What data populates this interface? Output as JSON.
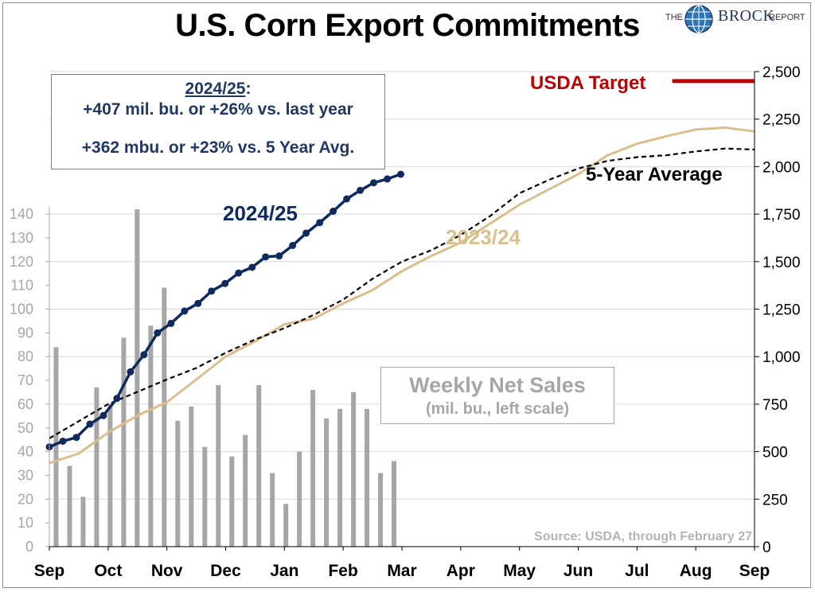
{
  "title": "U.S. Corn Export Commitments",
  "logo": {
    "the": "THE",
    "brock": "BROCK",
    "report": "REPORT"
  },
  "info_box": {
    "heading": "2024/25",
    "heading_suffix": ":",
    "line1": "+407 mil. bu. or +26% vs. last year",
    "line2": "+362 mbu. or +23% vs. 5 Year Avg."
  },
  "weekly_box": {
    "line1": "Weekly Net Sales",
    "line2": "(mil. bu., left scale)"
  },
  "source": "Source: USDA, through February 27",
  "colors": {
    "navy": "#0f2a5f",
    "tan": "#d9bf8c",
    "avg": "#000000",
    "usda": "#c00000",
    "bars": "#a6a6a6",
    "grid": "#d9d9d9"
  },
  "chart_data": {
    "type": "line",
    "x_axis": {
      "labels": [
        "Sep",
        "Oct",
        "Nov",
        "Dec",
        "Jan",
        "Feb",
        "Mar",
        "Apr",
        "May",
        "Jun",
        "Jul",
        "Aug",
        "Sep"
      ],
      "range_months": [
        0,
        12
      ]
    },
    "right_axis": {
      "ticks": [
        "0",
        "250",
        "500",
        "750",
        "1,000",
        "1,250",
        "1,500",
        "1,750",
        "2,000",
        "2,250",
        "2,500"
      ],
      "ylim": [
        0,
        2500
      ]
    },
    "left_axis": {
      "ticks": [
        "0",
        "10",
        "20",
        "30",
        "40",
        "50",
        "60",
        "70",
        "80",
        "90",
        "100",
        "110",
        "120",
        "130",
        "140"
      ],
      "ylim": [
        0,
        200
      ]
    },
    "grid": true,
    "series": [
      {
        "name": "2024/25",
        "axis": "right",
        "style": "solid-markers",
        "x": [
          0,
          0.23,
          0.46,
          0.69,
          0.92,
          1.15,
          1.38,
          1.61,
          1.84,
          2.07,
          2.3,
          2.53,
          2.76,
          2.99,
          3.22,
          3.45,
          3.68,
          3.91,
          4.14,
          4.37,
          4.6,
          4.83,
          5.06,
          5.29,
          5.52,
          5.75,
          5.98
        ],
        "y": [
          525,
          555,
          575,
          645,
          690,
          780,
          920,
          1010,
          1125,
          1175,
          1240,
          1280,
          1345,
          1385,
          1440,
          1470,
          1525,
          1530,
          1585,
          1650,
          1705,
          1765,
          1830,
          1875,
          1915,
          1935,
          1960
        ]
      },
      {
        "name": "2023/24",
        "axis": "right",
        "style": "solid",
        "x": [
          0,
          0.5,
          1,
          1.5,
          2,
          2.5,
          3,
          3.5,
          4,
          4.5,
          5,
          5.5,
          6,
          6.5,
          7,
          7.5,
          8,
          8.5,
          9,
          9.5,
          10,
          10.5,
          11,
          11.5,
          12
        ],
        "y": [
          440,
          490,
          600,
          690,
          760,
          880,
          1000,
          1080,
          1170,
          1200,
          1280,
          1350,
          1450,
          1530,
          1600,
          1700,
          1800,
          1880,
          1960,
          2060,
          2120,
          2160,
          2195,
          2205,
          2185
        ]
      },
      {
        "name": "5-Year Average",
        "axis": "right",
        "style": "dashed",
        "x": [
          0,
          0.5,
          1,
          1.5,
          2,
          2.5,
          3,
          3.5,
          4,
          4.5,
          5,
          5.5,
          6,
          6.5,
          7,
          7.5,
          8,
          8.5,
          9,
          9.5,
          10,
          10.5,
          11,
          11.5,
          12
        ],
        "y": [
          570,
          660,
          750,
          815,
          880,
          940,
          1020,
          1090,
          1150,
          1220,
          1300,
          1410,
          1500,
          1560,
          1640,
          1740,
          1860,
          1930,
          1990,
          2030,
          2050,
          2060,
          2080,
          2095,
          2090
        ]
      },
      {
        "name": "USDA Target",
        "axis": "right",
        "style": "solid-thick",
        "x": [
          10.6,
          12
        ],
        "y": [
          2450,
          2450
        ]
      }
    ],
    "bars": {
      "name": "Weekly Net Sales",
      "axis": "left",
      "x": [
        0.115,
        0.345,
        0.575,
        0.805,
        1.035,
        1.265,
        1.495,
        1.725,
        1.955,
        2.185,
        2.415,
        2.645,
        2.875,
        3.105,
        3.335,
        3.565,
        3.795,
        4.025,
        4.255,
        4.485,
        4.715,
        4.945,
        5.175,
        5.405,
        5.635,
        5.865
      ],
      "values": [
        84,
        34,
        21,
        67,
        60,
        88,
        142,
        93,
        109,
        53,
        59,
        42,
        68,
        38,
        47,
        68,
        31,
        18,
        40,
        66,
        54,
        58,
        65,
        58,
        31,
        36
      ]
    },
    "annotations": [
      {
        "text": "2024/25",
        "color": "#0f2a5f"
      },
      {
        "text": "2023/24",
        "color": "#d9bf8c"
      },
      {
        "text": "5-Year Average",
        "color": "#000000"
      },
      {
        "text": "USDA Target",
        "color": "#c00000"
      }
    ]
  }
}
